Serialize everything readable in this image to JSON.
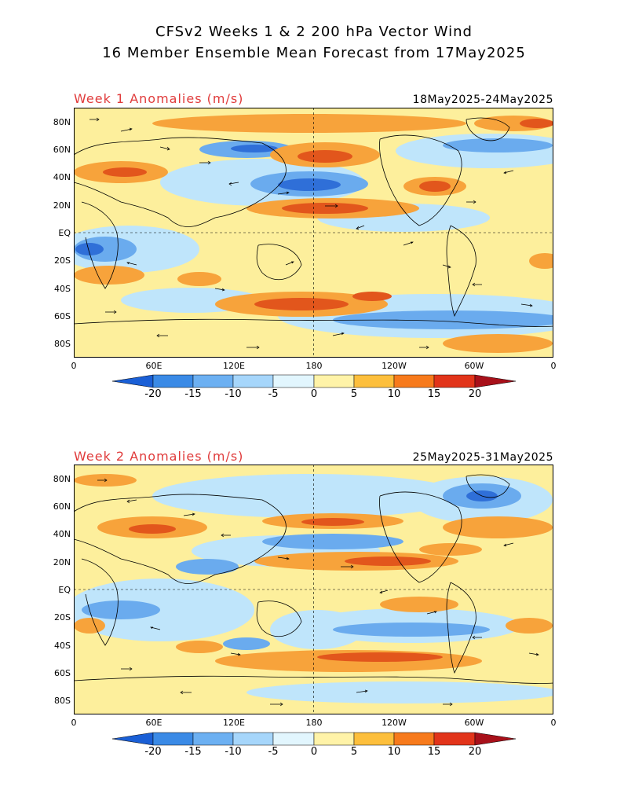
{
  "header": {
    "line1": "CFSv2 Weeks 1 & 2 200 hPa Vector Wind",
    "line2": "16 Member Ensemble Mean Forecast from 17May2025"
  },
  "panels": [
    {
      "label": "Week 1 Anomalies (m/s)",
      "dates": "18May2025-24May2025"
    },
    {
      "label": "Week 2 Anomalies (m/s)",
      "dates": "25May2025-31May2025"
    }
  ],
  "axes": {
    "lat_labels": [
      "80N",
      "60N",
      "40N",
      "20N",
      "EQ",
      "20S",
      "40S",
      "60S",
      "80S"
    ],
    "lon_labels": [
      "0",
      "60E",
      "120E",
      "180",
      "120W",
      "60W",
      "0"
    ]
  },
  "colorbar": {
    "ticks": [
      "-20",
      "-15",
      "-10",
      "-5",
      "0",
      "5",
      "10",
      "15",
      "20"
    ],
    "colors": [
      "#1a5fd6",
      "#3a8ae6",
      "#6cb0f2",
      "#a6d6fb",
      "#e2f6fe",
      "#fff3a8",
      "#fdbf3c",
      "#f77a1c",
      "#e2341a",
      "#a8101a"
    ]
  },
  "palette": {
    "title_red": "#e03b3b",
    "neg_strong": "#2f6fd8",
    "neg_mid": "#6aabee",
    "neg_weak": "#bfe5fb",
    "pos_weak": "#fdef9c",
    "pos_mid": "#f7a33b",
    "pos_strong": "#e2561c"
  }
}
